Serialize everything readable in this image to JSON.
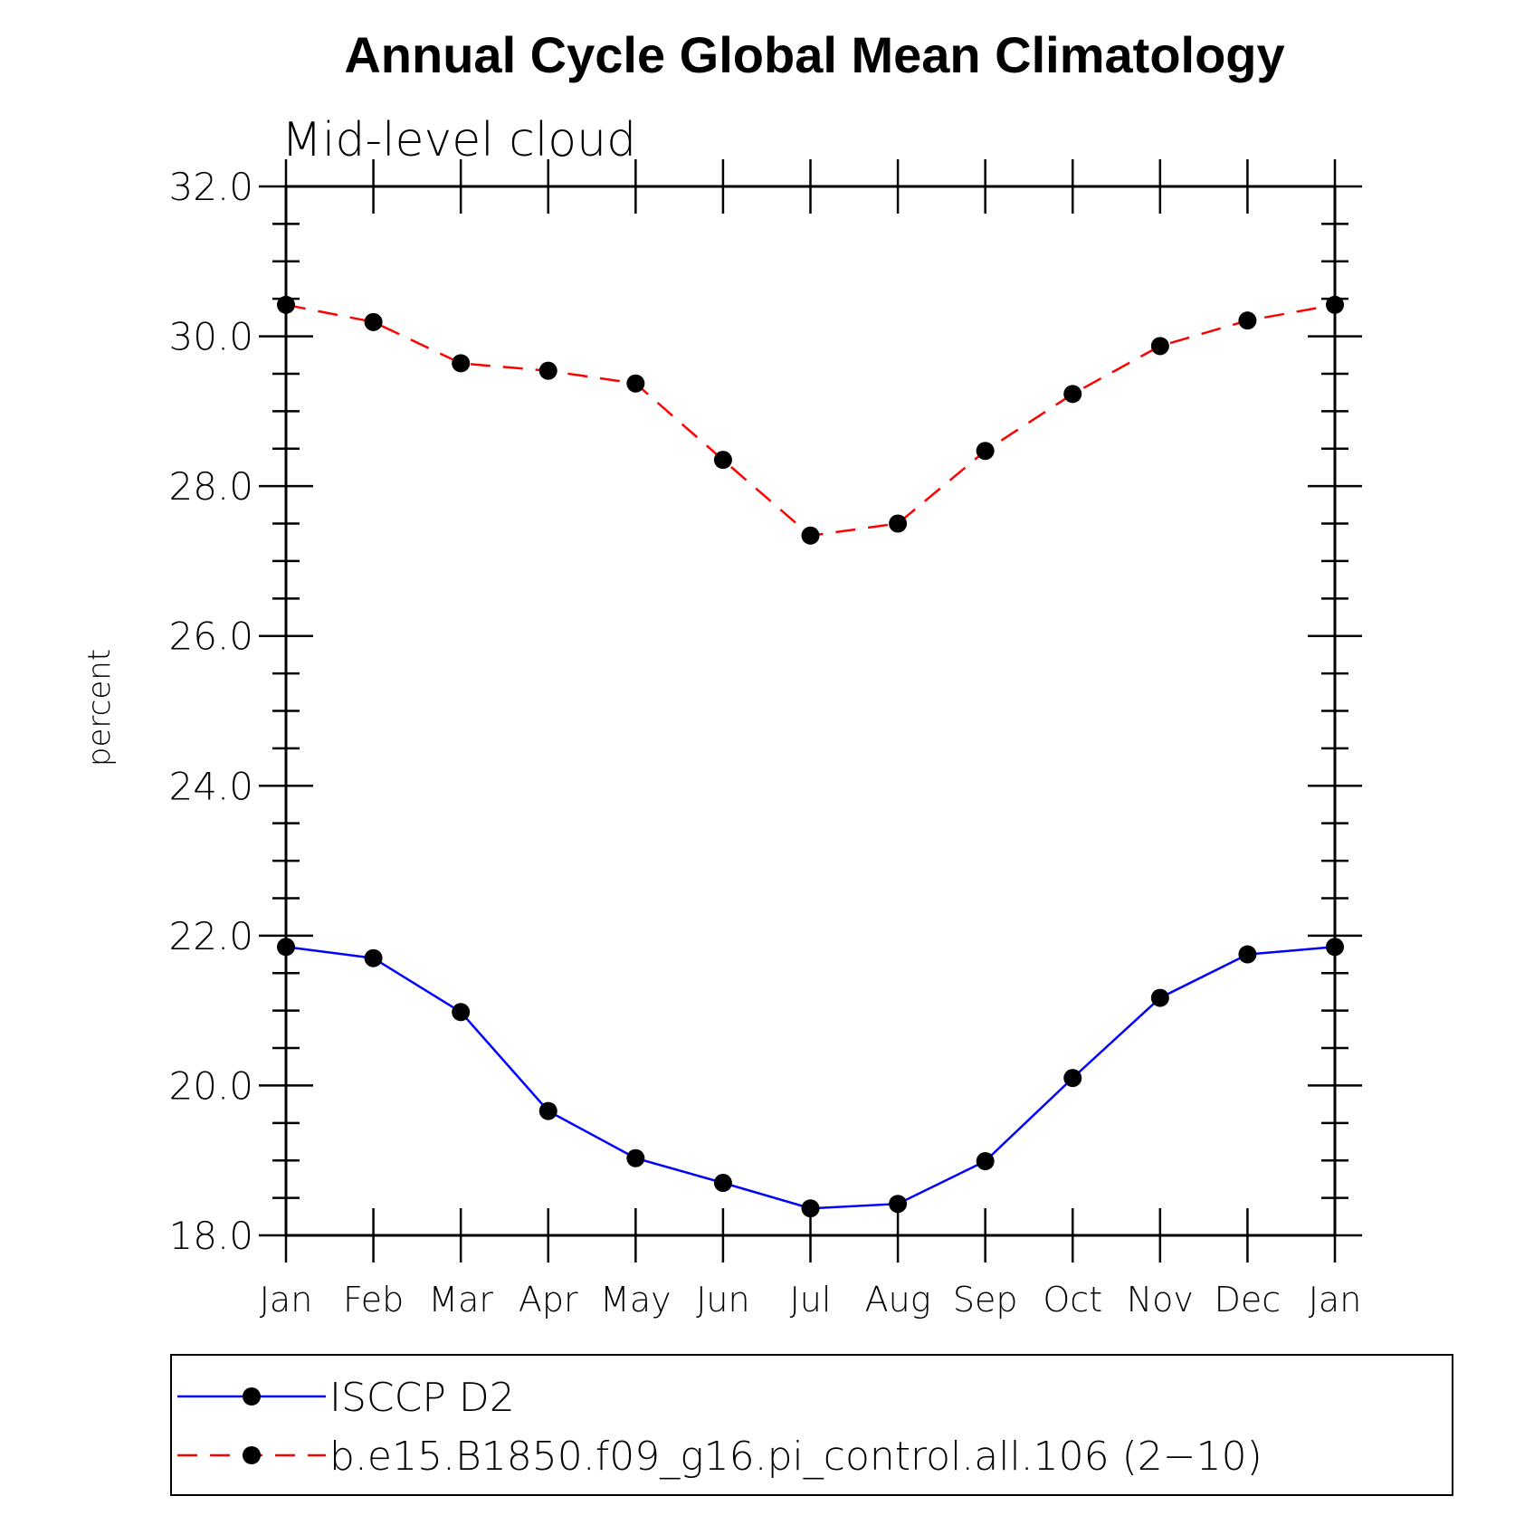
{
  "chart_data": {
    "type": "line",
    "title": "Annual Cycle Global Mean Climatology",
    "subtitle": "Mid-level cloud",
    "xlabel": "",
    "ylabel": "percent",
    "ylim": [
      18.0,
      32.0
    ],
    "yticks": [
      "18.0",
      "20.0",
      "22.0",
      "24.0",
      "26.0",
      "28.0",
      "30.0",
      "32.0"
    ],
    "categories": [
      "Jan",
      "Feb",
      "Mar",
      "Apr",
      "May",
      "Jun",
      "Jul",
      "Aug",
      "Sep",
      "Oct",
      "Nov",
      "Dec",
      "Jan"
    ],
    "grid": false,
    "legend_position": "bottom",
    "series": [
      {
        "name": "ISCCP D2",
        "color": "#0000ff",
        "dash": "solid",
        "marker": "filled-circle",
        "values": [
          21.85,
          21.7,
          20.98,
          19.66,
          19.03,
          18.7,
          18.36,
          18.42,
          18.99,
          20.1,
          21.17,
          21.75,
          21.85
        ]
      },
      {
        "name": "b.e15.B1850.f09_g16.pi_control.all.106 (2−10)",
        "color": "#ff0000",
        "dash": "dashed",
        "marker": "filled-circle",
        "values": [
          30.42,
          30.19,
          29.64,
          29.54,
          29.37,
          28.35,
          27.34,
          27.5,
          28.47,
          29.23,
          29.87,
          30.21,
          30.42
        ]
      }
    ]
  }
}
